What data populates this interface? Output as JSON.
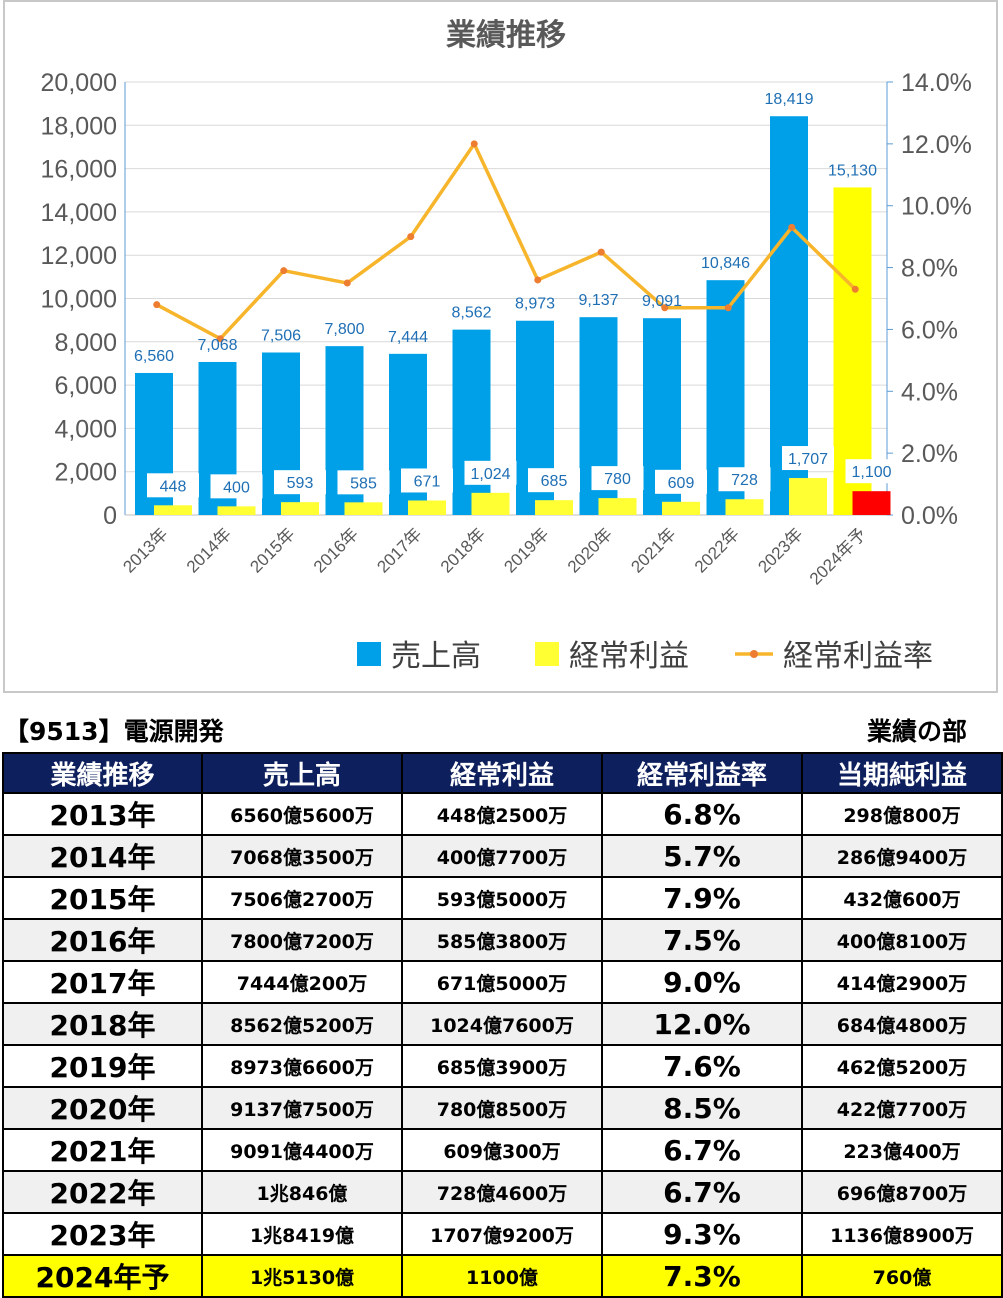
{
  "chart_data": {
    "type": "bar",
    "title": "業績推移",
    "categories": [
      "2013年",
      "2014年",
      "2015年",
      "2016年",
      "2017年",
      "2018年",
      "2019年",
      "2020年",
      "2021年",
      "2022年",
      "2023年",
      "2024年予"
    ],
    "series": [
      {
        "name": "売上高",
        "axis": "left",
        "color": "#00a0e9",
        "values": [
          6560,
          7068,
          7506,
          7800,
          7444,
          8562,
          8973,
          9137,
          9091,
          10846,
          18419,
          15130
        ],
        "labels": [
          "6,560",
          "7,068",
          "7,506",
          "7,800",
          "7,444",
          "8,562",
          "8,973",
          "9,137",
          "9,091",
          "10,846",
          "18,419",
          "15,130"
        ],
        "forecast_color": "#ffff00"
      },
      {
        "name": "経常利益",
        "axis": "left",
        "color": "#ffff33",
        "values": [
          448,
          400,
          593,
          585,
          671,
          1024,
          685,
          780,
          609,
          728,
          1707,
          1100
        ],
        "labels": [
          "448",
          "400",
          "593",
          "585",
          "671",
          "1,024",
          "685",
          "780",
          "609",
          "728",
          "1,707",
          "1,100"
        ],
        "forecast_color": "#ff0000"
      },
      {
        "name": "経常利益率",
        "axis": "right",
        "type": "line",
        "color": "#f7b52c",
        "values": [
          6.8,
          5.7,
          7.9,
          7.5,
          9.0,
          12.0,
          7.6,
          8.5,
          6.7,
          6.7,
          9.3,
          7.3
        ]
      }
    ],
    "ylim": [
      0,
      20000
    ],
    "y_ticks": [
      "0",
      "2,000",
      "4,000",
      "6,000",
      "8,000",
      "10,000",
      "12,000",
      "14,000",
      "16,000",
      "18,000",
      "20,000"
    ],
    "y2lim": [
      0,
      14
    ],
    "y2_ticks": [
      "0.0%",
      "2.0%",
      "4.0%",
      "6.0%",
      "8.0%",
      "10.0%",
      "12.0%",
      "14.0%"
    ],
    "legend_position": "bottom-right",
    "grid": true
  },
  "header": {
    "company": "【9513】電源開発",
    "section": "業績の部"
  },
  "table": {
    "columns": [
      "業績推移",
      "売上高",
      "経常利益",
      "経常利益率",
      "当期純利益"
    ],
    "rows": [
      [
        "2013年",
        "6560億5600万",
        "448億2500万",
        "6.8%",
        "298億800万"
      ],
      [
        "2014年",
        "7068億3500万",
        "400億7700万",
        "5.7%",
        "286億9400万"
      ],
      [
        "2015年",
        "7506億2700万",
        "593億5000万",
        "7.9%",
        "432億600万"
      ],
      [
        "2016年",
        "7800億7200万",
        "585億3800万",
        "7.5%",
        "400億8100万"
      ],
      [
        "2017年",
        "7444億200万",
        "671億5000万",
        "9.0%",
        "414億2900万"
      ],
      [
        "2018年",
        "8562億5200万",
        "1024億7600万",
        "12.0%",
        "684億4800万"
      ],
      [
        "2019年",
        "8973億6600万",
        "685億3900万",
        "7.6%",
        "462億5200万"
      ],
      [
        "2020年",
        "9137億7500万",
        "780億8500万",
        "8.5%",
        "422億7700万"
      ],
      [
        "2021年",
        "9091億4400万",
        "609億300万",
        "6.7%",
        "223億400万"
      ],
      [
        "2022年",
        "1兆846億",
        "728億4600万",
        "6.7%",
        "696億8700万"
      ],
      [
        "2023年",
        "1兆8419億",
        "1707億9200万",
        "9.3%",
        "1136億8900万"
      ],
      [
        "2024年予",
        "1兆5130億",
        "1100億",
        "7.3%",
        "760億"
      ]
    ]
  }
}
